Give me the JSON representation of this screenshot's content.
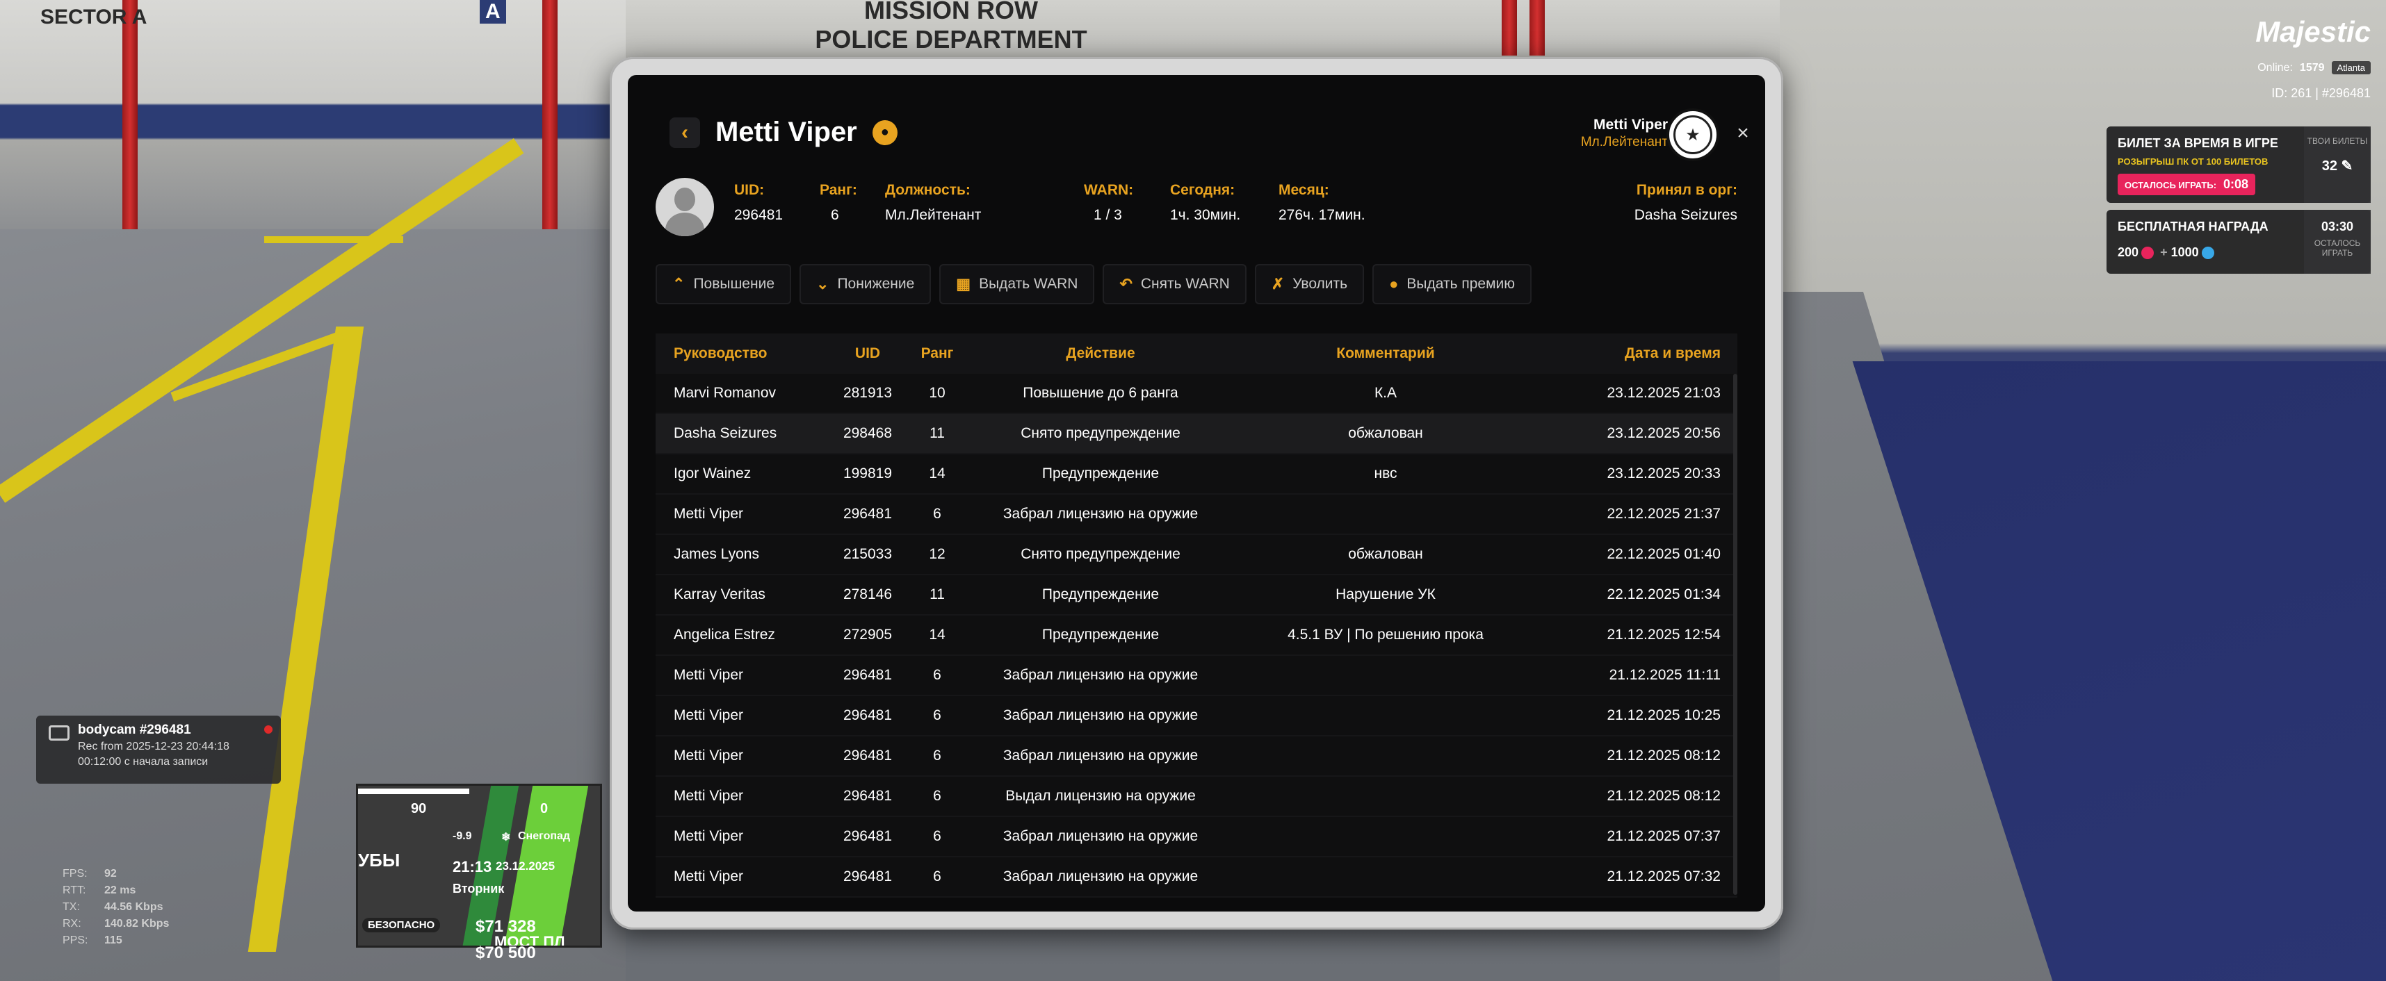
{
  "background": {
    "sign_left": "SECTOR A",
    "sign_letter": "A",
    "sign_top_1": "MISSION ROW",
    "sign_top_2": "POLICE DEPARTMENT"
  },
  "header": {
    "name": "Metti Viper",
    "user_name": "Metti Viper",
    "user_rank": "Мл.Лейтенант",
    "close": "×",
    "back": "‹"
  },
  "info": {
    "uid_label": "UID:",
    "uid": "296481",
    "rank_label": "Ранг:",
    "rank": "6",
    "position_label": "Должность:",
    "position": "Мл.Лейтенант",
    "warn_label": "WARN:",
    "warn": "1 / 3",
    "today_label": "Сегодня:",
    "today": "1ч. 30мин.",
    "month_label": "Месяц:",
    "month": "276ч. 17мин.",
    "accepted_label": "Принял в орг:",
    "accepted": "Dasha Seizures"
  },
  "actions": [
    {
      "label": "Повышение",
      "icon": "chevron-up-icon"
    },
    {
      "label": "Понижение",
      "icon": "chevron-down-icon"
    },
    {
      "label": "Выдать WARN",
      "icon": "warn-doc-icon"
    },
    {
      "label": "Снять WARN",
      "icon": "undo-icon"
    },
    {
      "label": "Уволить",
      "icon": "fire-user-icon"
    },
    {
      "label": "Выдать премию",
      "icon": "coin-icon"
    }
  ],
  "table": {
    "headers": [
      "Руководство",
      "UID",
      "Ранг",
      "Действие",
      "Комментарий",
      "Дата и время"
    ],
    "rows": [
      [
        "Marvi Romanov",
        "281913",
        "10",
        "Повышение до 6 ранга",
        "К.А",
        "23.12.2025 21:03"
      ],
      [
        "Dasha Seizures",
        "298468",
        "11",
        "Снято предупреждение",
        "обжалован",
        "23.12.2025 20:56"
      ],
      [
        "Igor Wainez",
        "199819",
        "14",
        "Предупреждение",
        "нвс",
        "23.12.2025 20:33"
      ],
      [
        "Metti Viper",
        "296481",
        "6",
        "Забрал лицензию на оружие",
        "",
        "22.12.2025 21:37"
      ],
      [
        "James Lyons",
        "215033",
        "12",
        "Снято предупреждение",
        "обжалован",
        "22.12.2025 01:40"
      ],
      [
        "Karray Veritas",
        "278146",
        "11",
        "Предупреждение",
        "Нарушение УК",
        "22.12.2025 01:34"
      ],
      [
        "Angelica Estrez",
        "272905",
        "14",
        "Предупреждение",
        "4.5.1 ВУ | По решению прока",
        "21.12.2025 12:54"
      ],
      [
        "Metti Viper",
        "296481",
        "6",
        "Забрал лицензию на оружие",
        "",
        "21.12.2025 11:11"
      ],
      [
        "Metti Viper",
        "296481",
        "6",
        "Забрал лицензию на оружие",
        "",
        "21.12.2025 10:25"
      ],
      [
        "Metti Viper",
        "296481",
        "6",
        "Забрал лицензию на оружие",
        "",
        "21.12.2025 08:12"
      ],
      [
        "Metti Viper",
        "296481",
        "6",
        "Выдал лицензию на оружие",
        "",
        "21.12.2025 08:12"
      ],
      [
        "Metti Viper",
        "296481",
        "6",
        "Забрал лицензию на оружие",
        "",
        "21.12.2025 07:37"
      ],
      [
        "Metti Viper",
        "296481",
        "6",
        "Забрал лицензию на оружие",
        "",
        "21.12.2025 07:32"
      ]
    ]
  },
  "hud": {
    "logo": "Majestic",
    "online_label": "Online:",
    "online": "1579",
    "server": "Atlanta",
    "id_line": "ID: 261 | #296481",
    "ticket_title": "БИЛЕТ ЗА ВРЕМЯ В ИГРЕ",
    "ticket_sub": "РОЗЫГРЫШ ПК ОТ 100 БИЛЕТОВ",
    "ticket_left_label": "ОСТАЛОСЬ ИГРАТЬ:",
    "ticket_left": "0:08",
    "your_tickets_label": "ТВОИ БИЛЕТЫ",
    "your_tickets": "32",
    "reward_title": "БЕСПЛАТНАЯ НАГРАДА",
    "reward_a": "200",
    "reward_plus": "+",
    "reward_b": "1000",
    "reward_time": "03:30",
    "reward_left_label": "ОСТАЛОСЬ ИГРАТЬ"
  },
  "bodycam": {
    "title": "bodycam #296481",
    "rec": "Rec from 2025-12-23 20:44:18",
    "elapsed": "00:12:00 с начала записи"
  },
  "minimap": {
    "speed_a": "90",
    "speed_b": "0",
    "temp": "-9.9",
    "weather": "Снегопад",
    "time": "21:13",
    "date": "23.12.2025",
    "day": "Вторник",
    "zone": "БЕЗОПАСНО",
    "street": "МОСТ ПЛ",
    "street_left": "УБЫ",
    "money_1": "$71 328",
    "money_2": "$70 500"
  },
  "stats": {
    "fps_label": "FPS:",
    "fps": "92",
    "rtt_label": "RTT:",
    "rtt": "22 ms",
    "tx_label": "TX:",
    "tx": "44.56 Kbps",
    "rx_label": "RX:",
    "rx": "140.82 Kbps",
    "pps_label": "PPS:",
    "pps": "115"
  },
  "colors": {
    "accent": "#e8a320",
    "pink": "#e8245c",
    "panel": "#0b0b0c"
  }
}
